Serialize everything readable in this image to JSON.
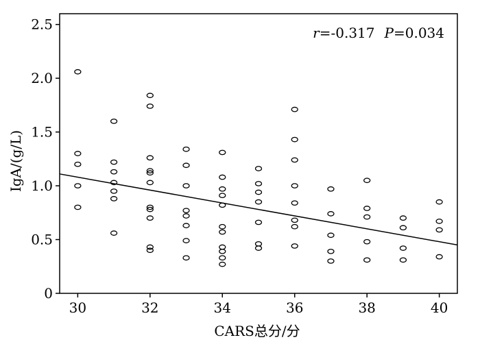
{
  "chart_data": {
    "type": "scatter",
    "title": "",
    "xlabel": "CARS总分/分",
    "ylabel": "IgA/(g/L)",
    "xlim": [
      29.5,
      40.5
    ],
    "ylim": [
      0,
      2.6
    ],
    "x_ticks": [
      30,
      32,
      34,
      36,
      38,
      40
    ],
    "x_tick_labels": [
      "30",
      "32",
      "34",
      "36",
      "38",
      "40"
    ],
    "y_ticks": [
      0,
      0.5,
      1.0,
      1.5,
      2.0,
      2.5
    ],
    "y_tick_labels": [
      "0",
      "0.5",
      "1.0",
      "1.5",
      "2.0",
      "2.5"
    ],
    "grid": false,
    "annotation": {
      "r_label": "r",
      "r_value": "=-0.317",
      "p_label": "P",
      "p_value": "=0.034"
    },
    "regression_line": {
      "x": [
        29.5,
        40.5
      ],
      "y": [
        1.11,
        0.45
      ]
    },
    "points": [
      {
        "x": 30,
        "y": 2.06
      },
      {
        "x": 30,
        "y": 1.3
      },
      {
        "x": 30,
        "y": 1.2
      },
      {
        "x": 30,
        "y": 1.0
      },
      {
        "x": 30,
        "y": 0.8
      },
      {
        "x": 31,
        "y": 1.6
      },
      {
        "x": 31,
        "y": 1.22
      },
      {
        "x": 31,
        "y": 1.13
      },
      {
        "x": 31,
        "y": 1.03
      },
      {
        "x": 31,
        "y": 0.95
      },
      {
        "x": 31,
        "y": 0.88
      },
      {
        "x": 31,
        "y": 0.56
      },
      {
        "x": 32,
        "y": 1.84
      },
      {
        "x": 32,
        "y": 1.74
      },
      {
        "x": 32,
        "y": 1.26
      },
      {
        "x": 32,
        "y": 1.14
      },
      {
        "x": 32,
        "y": 1.12
      },
      {
        "x": 32,
        "y": 1.03
      },
      {
        "x": 32,
        "y": 0.8
      },
      {
        "x": 32,
        "y": 0.78
      },
      {
        "x": 32,
        "y": 0.7
      },
      {
        "x": 32,
        "y": 0.43
      },
      {
        "x": 32,
        "y": 0.4
      },
      {
        "x": 33,
        "y": 1.34
      },
      {
        "x": 33,
        "y": 1.19
      },
      {
        "x": 33,
        "y": 1.0
      },
      {
        "x": 33,
        "y": 0.77
      },
      {
        "x": 33,
        "y": 0.72
      },
      {
        "x": 33,
        "y": 0.63
      },
      {
        "x": 33,
        "y": 0.49
      },
      {
        "x": 33,
        "y": 0.33
      },
      {
        "x": 34,
        "y": 1.31
      },
      {
        "x": 34,
        "y": 1.08
      },
      {
        "x": 34,
        "y": 0.97
      },
      {
        "x": 34,
        "y": 0.91
      },
      {
        "x": 34,
        "y": 0.82
      },
      {
        "x": 34,
        "y": 0.62
      },
      {
        "x": 34,
        "y": 0.57
      },
      {
        "x": 34,
        "y": 0.43
      },
      {
        "x": 34,
        "y": 0.39
      },
      {
        "x": 34,
        "y": 0.33
      },
      {
        "x": 34,
        "y": 0.27
      },
      {
        "x": 35,
        "y": 1.16
      },
      {
        "x": 35,
        "y": 1.02
      },
      {
        "x": 35,
        "y": 0.94
      },
      {
        "x": 35,
        "y": 0.85
      },
      {
        "x": 35,
        "y": 0.66
      },
      {
        "x": 35,
        "y": 0.46
      },
      {
        "x": 35,
        "y": 0.42
      },
      {
        "x": 36,
        "y": 1.71
      },
      {
        "x": 36,
        "y": 1.43
      },
      {
        "x": 36,
        "y": 1.24
      },
      {
        "x": 36,
        "y": 1.0
      },
      {
        "x": 36,
        "y": 0.84
      },
      {
        "x": 36,
        "y": 0.68
      },
      {
        "x": 36,
        "y": 0.62
      },
      {
        "x": 36,
        "y": 0.44
      },
      {
        "x": 37,
        "y": 0.97
      },
      {
        "x": 37,
        "y": 0.74
      },
      {
        "x": 37,
        "y": 0.54
      },
      {
        "x": 37,
        "y": 0.39
      },
      {
        "x": 37,
        "y": 0.3
      },
      {
        "x": 38,
        "y": 1.05
      },
      {
        "x": 38,
        "y": 0.79
      },
      {
        "x": 38,
        "y": 0.71
      },
      {
        "x": 38,
        "y": 0.48
      },
      {
        "x": 38,
        "y": 0.31
      },
      {
        "x": 39,
        "y": 0.7
      },
      {
        "x": 39,
        "y": 0.61
      },
      {
        "x": 39,
        "y": 0.42
      },
      {
        "x": 39,
        "y": 0.31
      },
      {
        "x": 40,
        "y": 0.85
      },
      {
        "x": 40,
        "y": 0.67
      },
      {
        "x": 40,
        "y": 0.59
      },
      {
        "x": 40,
        "y": 0.34
      }
    ]
  }
}
